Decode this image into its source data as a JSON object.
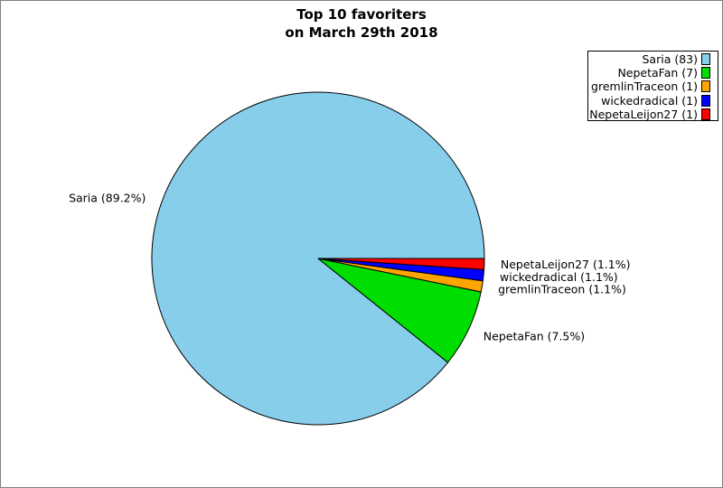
{
  "figure": {
    "background": "#ffffff",
    "border_color": "#808080"
  },
  "title": {
    "lines": [
      "Top 10 favoriters",
      "on March 29th 2018"
    ]
  },
  "chart_data": {
    "type": "pie",
    "title": "Top 10 favoriters on March 29th 2018",
    "start_angle_deg": 0,
    "direction": "counterclockwise",
    "legend_position": "upper right",
    "outline_color": "#000000",
    "series": [
      {
        "name": "Saria",
        "value": 83,
        "pct_label": "89.2%",
        "slice_label": "Saria (89.2%)",
        "legend_label": "Saria (83)",
        "color": "#87CEEB"
      },
      {
        "name": "NepetaFan",
        "value": 7,
        "pct_label": "7.5%",
        "slice_label": "NepetaFan (7.5%)",
        "legend_label": "NepetaFan (7)",
        "color": "#00DD00"
      },
      {
        "name": "gremlinTraceon",
        "value": 1,
        "pct_label": "1.1%",
        "slice_label": "gremlinTraceon (1.1%)",
        "legend_label": "gremlinTraceon (1)",
        "color": "#FFA500"
      },
      {
        "name": "wickedradical",
        "value": 1,
        "pct_label": "1.1%",
        "slice_label": "wickedradical (1.1%)",
        "legend_label": "wickedradical (1)",
        "color": "#0000FF"
      },
      {
        "name": "NepetaLeijon27",
        "value": 1,
        "pct_label": "1.1%",
        "slice_label": "NepetaLeijon27 (1.1%)",
        "legend_label": "NepetaLeijon27 (1)",
        "color": "#FF0000"
      }
    ]
  }
}
